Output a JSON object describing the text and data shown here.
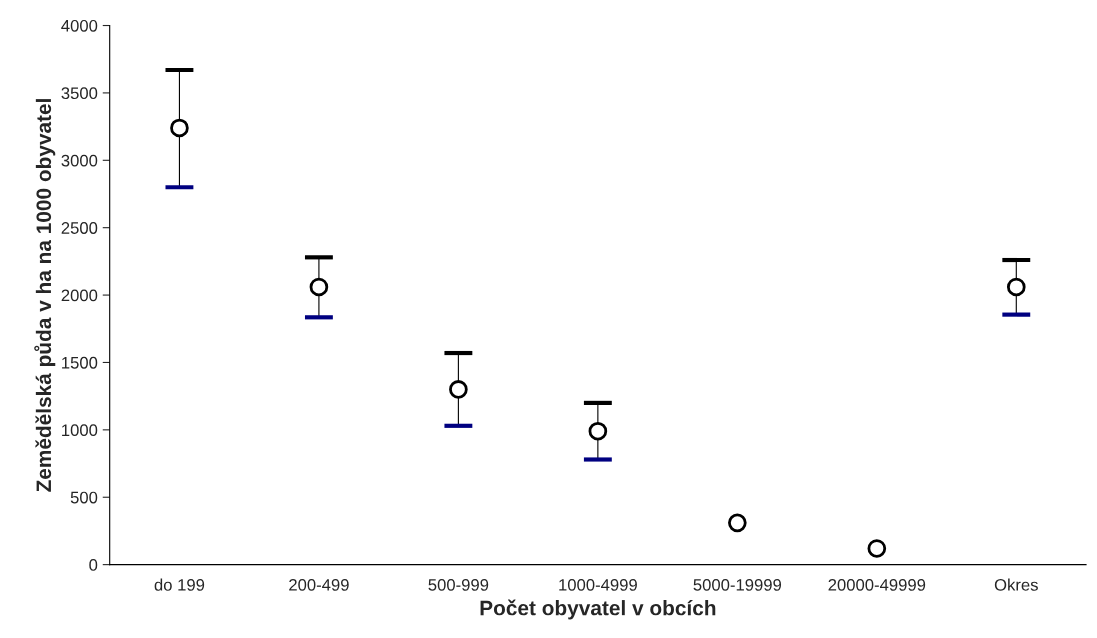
{
  "chart_data": {
    "type": "scatter",
    "xlabel": "Počet obyvatel v obcích",
    "ylabel": "Zemědělská půda v ha na 1000 obyvatel",
    "categories": [
      "do 199",
      "200-499",
      "500-999",
      "1000-4999",
      "5000-19999",
      "20000-49999",
      "Okres"
    ],
    "series": [
      {
        "color": "#000000",
        "values": [
          3240,
          2060,
          1300,
          990,
          310,
          120,
          2060
        ],
        "errors": [
          [
            2800,
            3670
          ],
          [
            1835,
            2280
          ],
          [
            1030,
            1570
          ],
          [
            780,
            1200
          ],
          null,
          null,
          [
            1855,
            2260
          ]
        ]
      }
    ],
    "ylim": [
      0,
      4000
    ],
    "yticks": [
      0,
      500,
      1000,
      1500,
      2000,
      2500,
      3000,
      3500,
      4000
    ],
    "marker": "circle",
    "grid": false,
    "legend": false
  }
}
